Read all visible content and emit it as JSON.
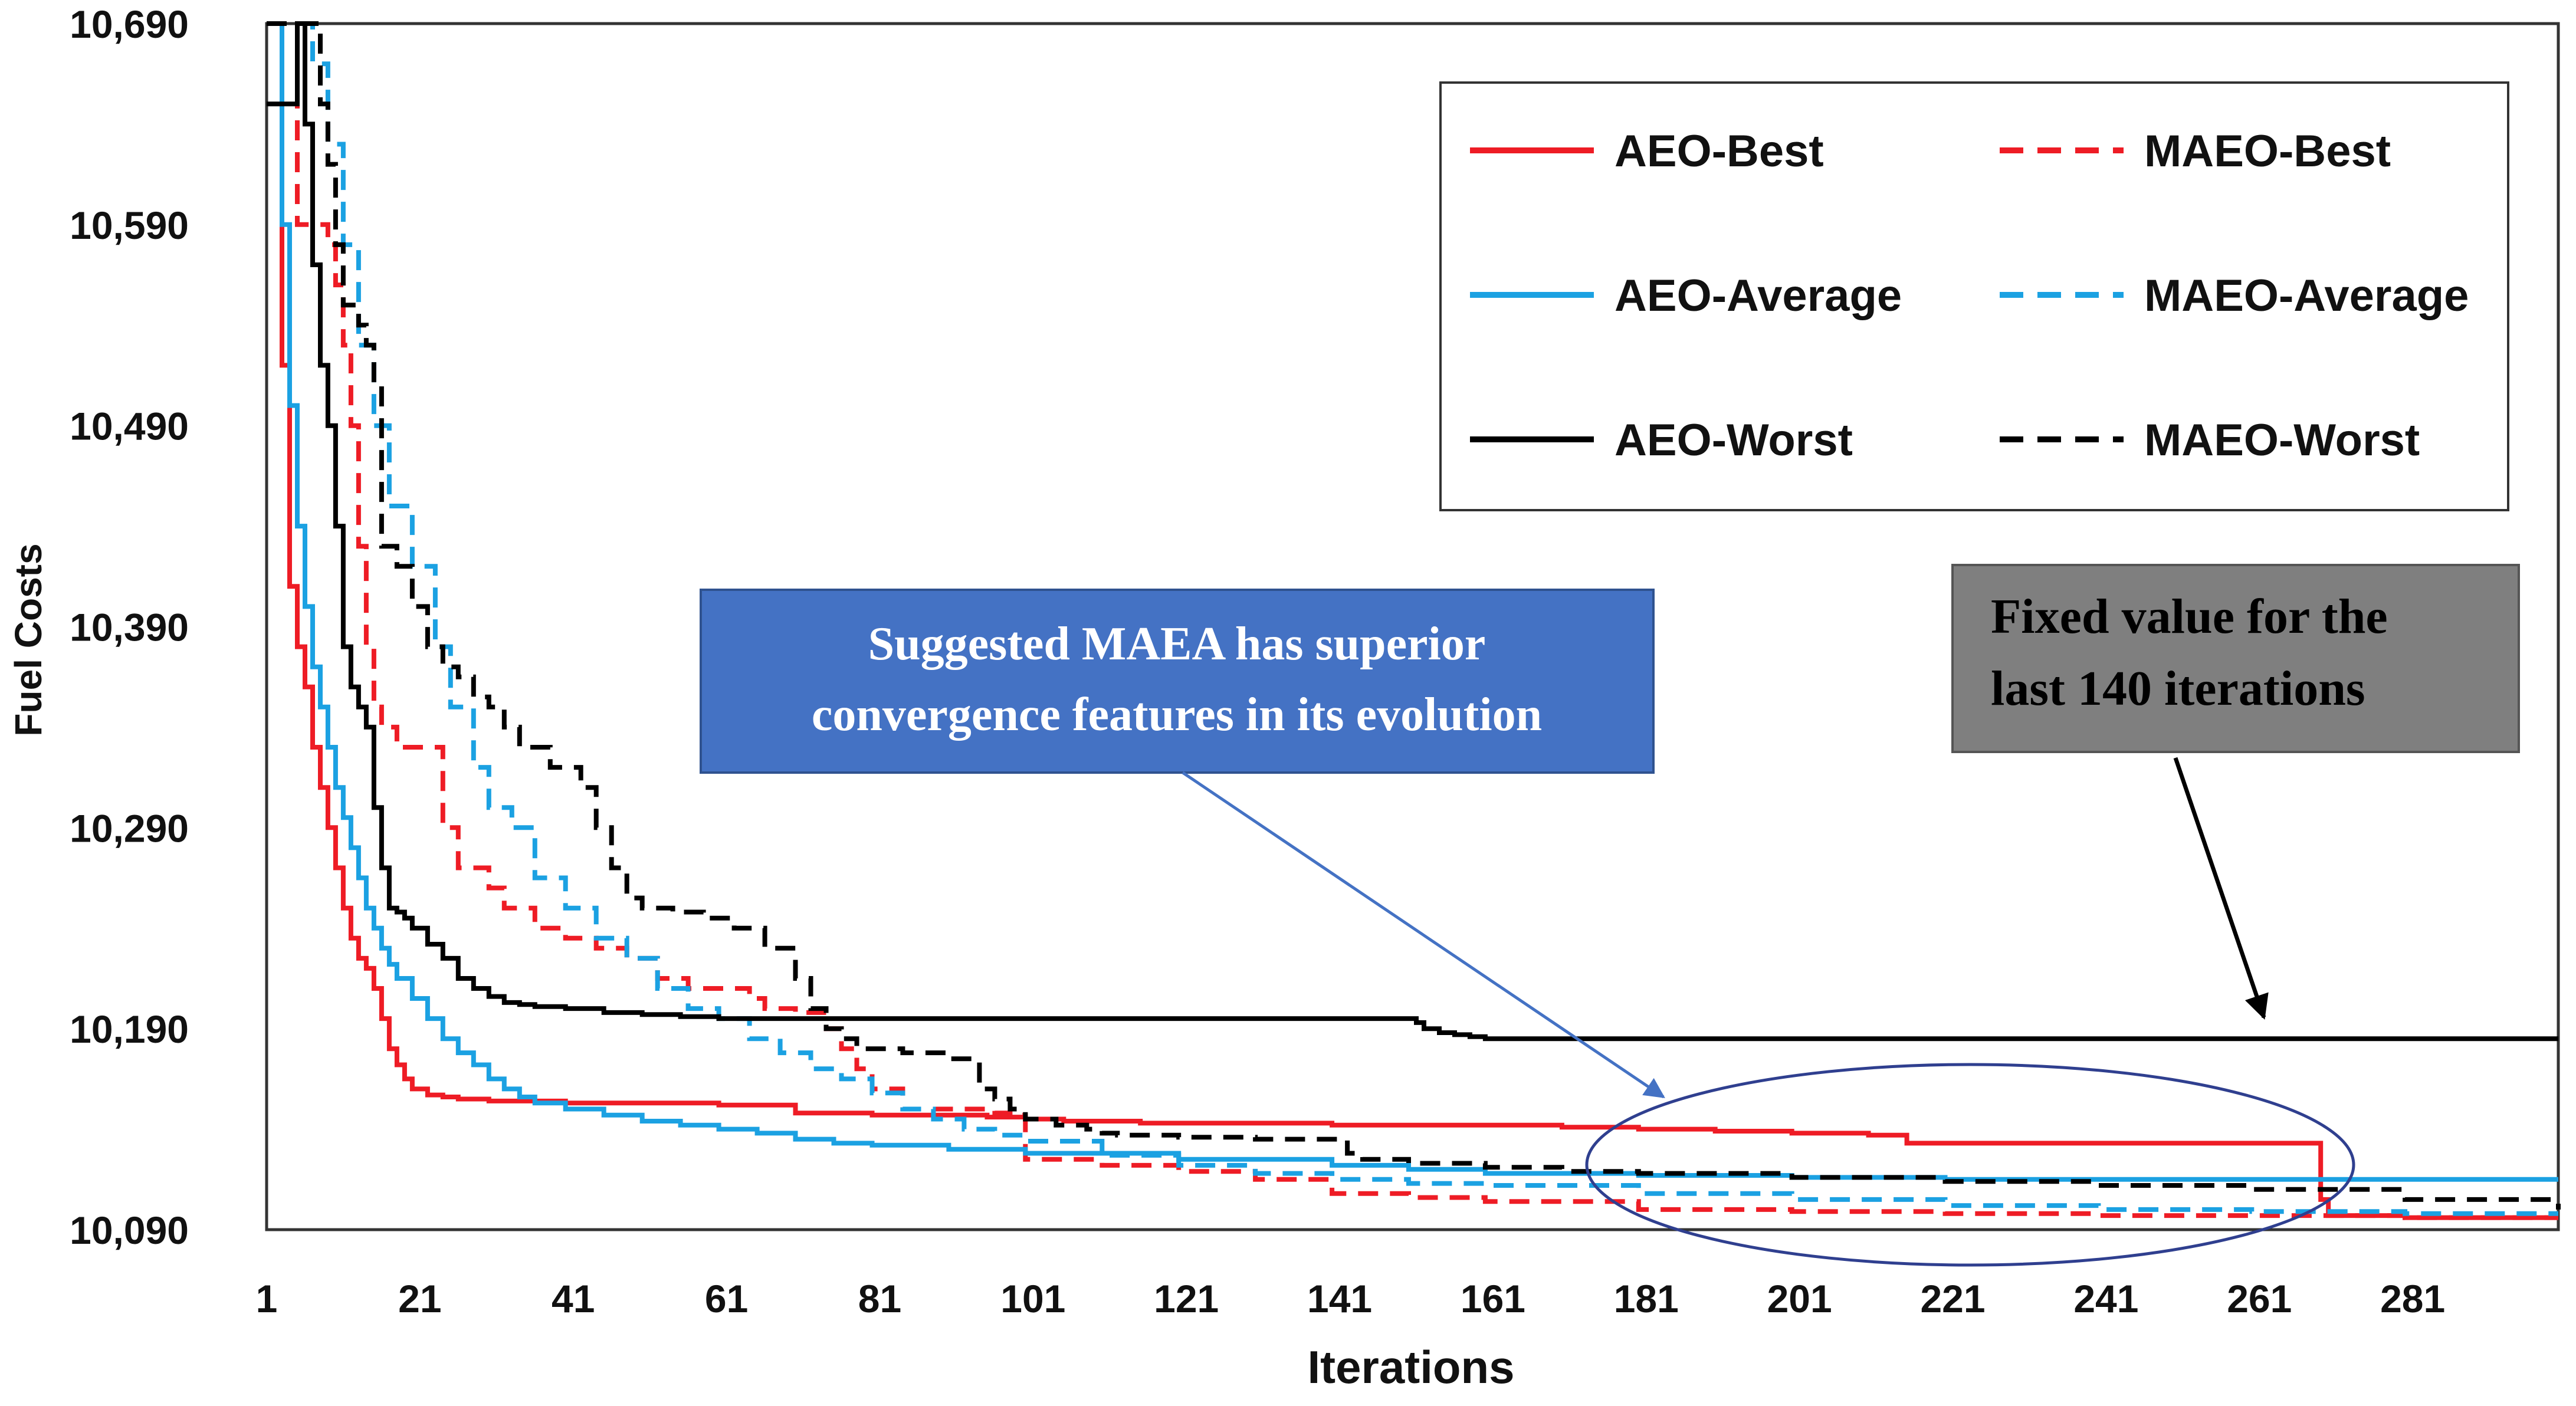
{
  "chart_data": {
    "type": "line",
    "title": "",
    "xlabel": "Iterations",
    "ylabel": "Fuel Costs",
    "xlim": [
      1,
      300
    ],
    "ylim": [
      10090,
      10690
    ],
    "x_ticks": [
      1,
      21,
      41,
      61,
      81,
      101,
      121,
      141,
      161,
      181,
      201,
      221,
      241,
      261,
      281
    ],
    "y_ticks": [
      10090,
      10190,
      10290,
      10390,
      10490,
      10590,
      10690
    ],
    "y_tick_labels": [
      "10,090",
      "10,190",
      "10,290",
      "10,390",
      "10,490",
      "10,590",
      "10,690"
    ],
    "grid": false,
    "legend_position": "top-right",
    "series": [
      {
        "name": "AEO-Best",
        "color": "#ee1c25",
        "dash": "solid",
        "x": [
          1,
          3,
          4,
          5,
          6,
          7,
          8,
          9,
          10,
          11,
          12,
          13,
          14,
          15,
          16,
          17,
          18,
          19,
          20,
          22,
          24,
          26,
          30,
          40,
          50,
          60,
          66,
          70,
          75,
          80,
          85,
          90,
          95,
          100,
          105,
          110,
          115,
          120,
          140,
          160,
          170,
          180,
          190,
          200,
          210,
          215,
          220,
          230,
          240,
          250,
          260,
          268,
          269,
          270,
          275,
          280,
          290,
          300
        ],
        "values": [
          10690,
          10520,
          10410,
          10380,
          10360,
          10330,
          10310,
          10290,
          10270,
          10250,
          10235,
          10225,
          10220,
          10210,
          10195,
          10180,
          10172,
          10165,
          10160,
          10157,
          10156,
          10155,
          10154,
          10153,
          10153,
          10152,
          10152,
          10148,
          10148,
          10147,
          10147,
          10147,
          10146,
          10145,
          10144,
          10144,
          10143,
          10143,
          10142,
          10142,
          10141,
          10140,
          10139,
          10138,
          10137,
          10133,
          10133,
          10133,
          10133,
          10133,
          10133,
          10133,
          10105,
          10097,
          10097,
          10096,
          10096,
          10096
        ]
      },
      {
        "name": "MAEO-Best",
        "color": "#ee1c25",
        "dash": "dashed",
        "x": [
          1,
          4,
          5,
          8,
          9,
          10,
          11,
          12,
          13,
          14,
          15,
          16,
          18,
          20,
          22,
          24,
          26,
          28,
          30,
          32,
          36,
          40,
          44,
          48,
          52,
          56,
          60,
          64,
          66,
          70,
          74,
          76,
          78,
          80,
          84,
          88,
          92,
          96,
          98,
          100,
          110,
          120,
          130,
          140,
          150,
          160,
          180,
          200,
          220,
          240,
          260,
          280,
          300
        ],
        "values": [
          10690,
          10690,
          10590,
          10590,
          10580,
          10560,
          10530,
          10490,
          10430,
          10380,
          10350,
          10340,
          10330,
          10330,
          10330,
          10290,
          10270,
          10270,
          10260,
          10250,
          10240,
          10235,
          10230,
          10225,
          10215,
          10210,
          10210,
          10205,
          10200,
          10198,
          10190,
          10180,
          10170,
          10160,
          10150,
          10150,
          10150,
          10148,
          10147,
          10125,
          10122,
          10119,
          10115,
          10108,
          10106,
          10104,
          10100,
          10099,
          10098,
          10097,
          10097,
          10096,
          10096
        ]
      },
      {
        "name": "AEO-Average",
        "color": "#1ba1e2",
        "dash": "solid",
        "x": [
          1,
          3,
          4,
          5,
          6,
          7,
          8,
          9,
          10,
          11,
          12,
          13,
          14,
          15,
          16,
          17,
          18,
          20,
          22,
          24,
          26,
          28,
          30,
          32,
          34,
          36,
          40,
          45,
          50,
          55,
          60,
          65,
          70,
          75,
          80,
          90,
          100,
          120,
          140,
          150,
          160,
          180,
          200,
          220,
          240,
          260,
          280,
          300
        ],
        "values": [
          10690,
          10590,
          10500,
          10440,
          10400,
          10370,
          10350,
          10330,
          10310,
          10295,
          10280,
          10265,
          10250,
          10240,
          10230,
          10222,
          10215,
          10205,
          10195,
          10185,
          10178,
          10172,
          10165,
          10160,
          10156,
          10153,
          10150,
          10147,
          10144,
          10142,
          10140,
          10138,
          10135,
          10133,
          10132,
          10130,
          10128,
          10125,
          10122,
          10120,
          10118,
          10117,
          10116,
          10115,
          10115,
          10115,
          10115,
          10115
        ]
      },
      {
        "name": "MAEO-Average",
        "color": "#1ba1e2",
        "dash": "dashed",
        "x": [
          1,
          5,
          7,
          9,
          11,
          13,
          15,
          17,
          20,
          23,
          25,
          28,
          30,
          33,
          36,
          40,
          44,
          48,
          52,
          56,
          60,
          64,
          68,
          72,
          76,
          80,
          84,
          88,
          92,
          96,
          100,
          110,
          120,
          130,
          140,
          150,
          160,
          180,
          200,
          220,
          240,
          260,
          280,
          300
        ],
        "values": [
          10690,
          10690,
          10670,
          10630,
          10580,
          10530,
          10490,
          10450,
          10420,
          10380,
          10350,
          10320,
          10300,
          10290,
          10265,
          10250,
          10235,
          10225,
          10210,
          10200,
          10195,
          10185,
          10178,
          10170,
          10165,
          10158,
          10150,
          10145,
          10140,
          10137,
          10134,
          10127,
          10122,
          10118,
          10115,
          10113,
          10112,
          10108,
          10105,
          10102,
          10100,
          10099,
          10098,
          10098
        ]
      },
      {
        "name": "AEO-Worst",
        "color": "#000000",
        "dash": "solid",
        "x": [
          1,
          4,
          5,
          6,
          7,
          8,
          9,
          10,
          11,
          12,
          13,
          14,
          15,
          16,
          17,
          18,
          19,
          20,
          22,
          24,
          26,
          28,
          30,
          32,
          34,
          36,
          40,
          45,
          50,
          55,
          60,
          65,
          70,
          80,
          90,
          100,
          110,
          120,
          130,
          140,
          145,
          150,
          151,
          152,
          154,
          156,
          158,
          160,
          170,
          180,
          200,
          220,
          240,
          260,
          280,
          300
        ],
        "values": [
          10650,
          10650,
          10690,
          10640,
          10570,
          10520,
          10490,
          10440,
          10380,
          10360,
          10350,
          10340,
          10300,
          10270,
          10250,
          10248,
          10245,
          10240,
          10232,
          10225,
          10215,
          10210,
          10206,
          10203,
          10202,
          10201,
          10200,
          10198,
          10197,
          10196,
          10195,
          10195,
          10195,
          10195,
          10195,
          10195,
          10195,
          10195,
          10195,
          10195,
          10195,
          10195,
          10193,
          10190,
          10188,
          10187,
          10186,
          10185,
          10185,
          10185,
          10185,
          10185,
          10185,
          10185,
          10185,
          10185
        ]
      },
      {
        "name": "MAEO-Worst",
        "color": "#000000",
        "dash": "dashed",
        "x": [
          1,
          6,
          8,
          9,
          10,
          11,
          13,
          14,
          15,
          16,
          18,
          20,
          22,
          24,
          26,
          28,
          30,
          32,
          34,
          36,
          38,
          40,
          42,
          44,
          46,
          48,
          50,
          52,
          54,
          58,
          62,
          66,
          70,
          72,
          74,
          76,
          78,
          80,
          84,
          88,
          90,
          94,
          96,
          98,
          100,
          104,
          108,
          110,
          112,
          120,
          130,
          140,
          142,
          144,
          150,
          160,
          170,
          180,
          200,
          220,
          240,
          260,
          280,
          300
        ],
        "values": [
          10690,
          10690,
          10650,
          10620,
          10580,
          10550,
          10540,
          10530,
          10510,
          10430,
          10420,
          10400,
          10380,
          10370,
          10365,
          10355,
          10350,
          10340,
          10330,
          10330,
          10320,
          10320,
          10310,
          10290,
          10270,
          10255,
          10250,
          10250,
          10248,
          10245,
          10240,
          10230,
          10215,
          10200,
          10190,
          10185,
          10180,
          10180,
          10178,
          10178,
          10175,
          10160,
          10155,
          10150,
          10145,
          10142,
          10140,
          10138,
          10137,
          10136,
          10135,
          10135,
          10128,
          10125,
          10123,
          10121,
          10119,
          10118,
          10116,
          10114,
          10112,
          10110,
          10105,
          10100
        ]
      }
    ],
    "annotations": [
      {
        "lines": [
          "Suggested MAEA has superior",
          "convergence features in its evolution"
        ],
        "box_color": "#4472c4",
        "text_color": "#ffffff"
      },
      {
        "lines": [
          "Fixed value for the",
          "last 140 iterations"
        ],
        "box_color": "#7f7f7f",
        "text_color": "#000000"
      }
    ]
  }
}
